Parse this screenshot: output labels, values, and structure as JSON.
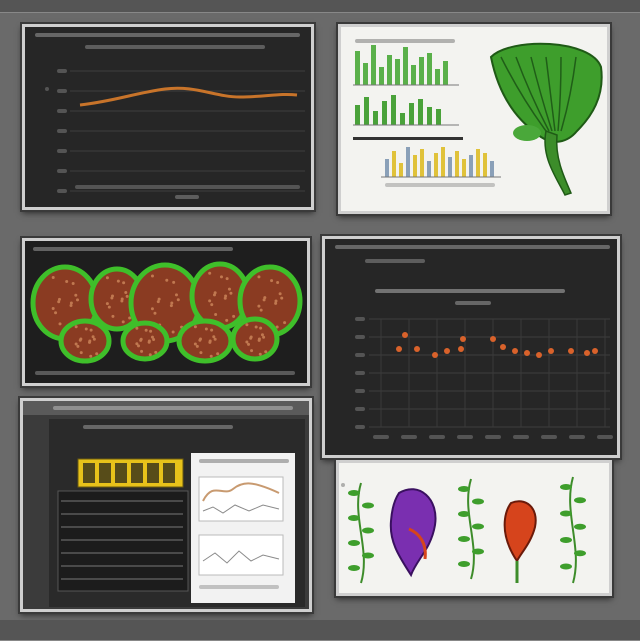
{
  "colors": {
    "background": "#6a6a6a",
    "frame_border": "#cfcfcf",
    "dark_panel": "#262626",
    "light_panel": "#f3f3f0",
    "line_orange": "#c8742a",
    "scatter_orange": "#d9622b",
    "cell_green": "#3fbf2a",
    "cell_brown": "#8a3b22",
    "plant_green": "#3e9e2c",
    "bar_green": "#5ab04a",
    "bar_yellow": "#e0c23a",
    "purple": "#7a2fb0",
    "red_orange": "#d6441c",
    "banner_yellow": "#e8c21a"
  },
  "panels": [
    {
      "id": "panel-line-chart",
      "kind": "dark chart with single orange line"
    },
    {
      "id": "panel-plant-bars",
      "kind": "light panel with green bar charts and a green plant"
    },
    {
      "id": "panel-cells",
      "kind": "micrograph of green-bordered cells with brown dotted interiors"
    },
    {
      "id": "panel-scatter",
      "kind": "dark scatter chart with orange points"
    },
    {
      "id": "panel-monitor",
      "kind": "monitor screen with yellow banner and two small line charts"
    },
    {
      "id": "panel-botanical",
      "kind": "light panel with purple and red flower shapes and green fern sprigs"
    }
  ],
  "icons": {
    "plant": "plant-illustration-icon",
    "flower_purple": "purple-flower-icon",
    "flower_red": "red-flower-icon",
    "fern": "fern-sprig-icon"
  }
}
